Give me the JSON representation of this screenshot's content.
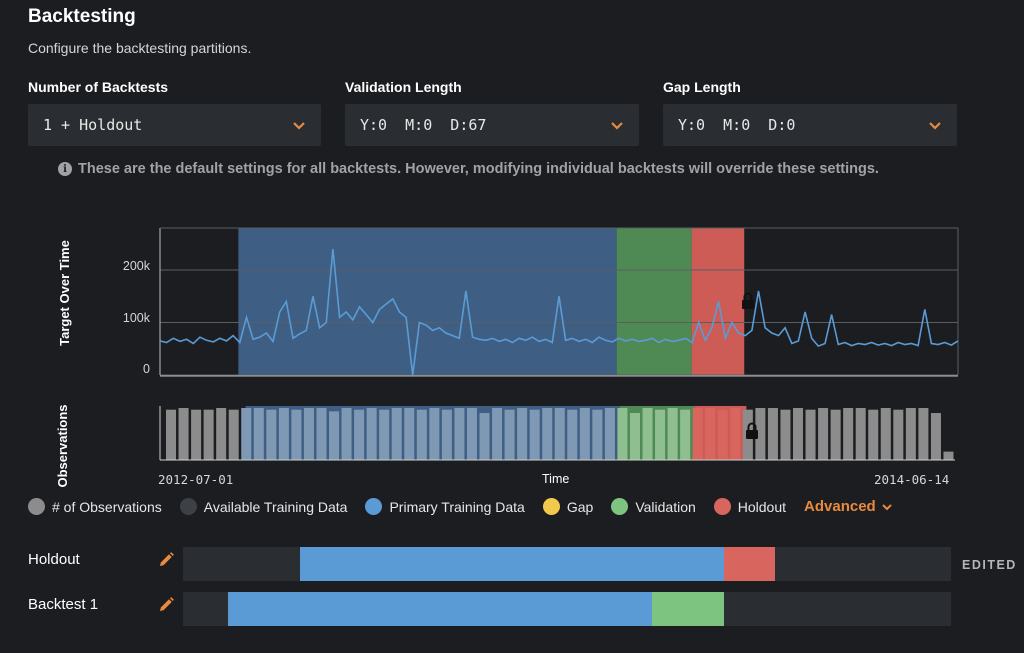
{
  "header": {
    "title": "Backtesting",
    "subtitle": "Configure the backtesting partitions."
  },
  "fields": {
    "backtests": {
      "label": "Number of Backtests",
      "value": "1 + Holdout"
    },
    "validation": {
      "label": "Validation Length",
      "value": "Y:0  M:0  D:67"
    },
    "gap": {
      "label": "Gap Length",
      "value": "Y:0  M:0  D:0"
    }
  },
  "info_text": "These are the default settings for all backtests. However, modifying individual backtests will override these settings.",
  "icons": {
    "info": "info-icon",
    "dropdown": "chevron-down-icon",
    "lock": "lock-icon",
    "edit": "pencil-icon"
  },
  "colors": {
    "primary_training": "#5b9bd5",
    "validation": "#7cc47f",
    "holdout": "#d9655f",
    "gap": "#f2c94c",
    "observations": "#8c8c8c",
    "available_training": "#3d4045",
    "accent": "#e98a3e"
  },
  "chart_data": [
    {
      "type": "line",
      "ylabel": "Target Over Time",
      "ytick_labels": [
        "0",
        "100k",
        "200k"
      ],
      "ylim": [
        0,
        280000
      ],
      "x_range": [
        "2012-07-01",
        "2014-06-14"
      ],
      "grid": true,
      "series": [
        {
          "values": [
            65000,
            62000,
            70000,
            64000,
            68000,
            60000,
            72000,
            66000,
            63000,
            70000,
            65000,
            75000,
            62000,
            110000,
            68000,
            72000,
            80000,
            64000,
            120000,
            140000,
            70000,
            78000,
            85000,
            150000,
            90000,
            100000,
            240000,
            110000,
            120000,
            105000,
            130000,
            115000,
            100000,
            125000,
            135000,
            145000,
            120000,
            110000,
            0,
            100000,
            95000,
            85000,
            90000,
            80000,
            75000,
            70000,
            160000,
            72000,
            68000,
            66000,
            70000,
            64000,
            68000,
            62000,
            70000,
            66000,
            72000,
            64000,
            68000,
            62000,
            150000,
            66000,
            70000,
            64000,
            68000,
            62000,
            72000,
            66000,
            63000,
            70000,
            65000,
            68000,
            64000,
            66000,
            70000,
            62000,
            68000,
            64000,
            66000,
            70000,
            62000,
            100000,
            66000,
            90000,
            140000,
            70000,
            100000,
            80000,
            75000,
            85000,
            160000,
            90000,
            80000,
            75000,
            90000,
            60000,
            65000,
            120000,
            70000,
            55000,
            60000,
            115000,
            58000,
            62000,
            56000,
            60000,
            58000,
            62000,
            57000,
            60000,
            56000,
            62000,
            58000,
            60000,
            56000,
            125000,
            60000,
            58000,
            62000,
            57000,
            65000
          ]
        }
      ],
      "partitions": [
        {
          "name": "Primary Training Data",
          "start": "2012-09-09",
          "end": "2013-08-13"
        },
        {
          "name": "Validation",
          "start": "2013-08-13",
          "end": "2013-10-19"
        },
        {
          "name": "Holdout",
          "start": "2013-10-19",
          "end": "2013-12-05"
        }
      ]
    },
    {
      "type": "bar",
      "ylabel": "Observations",
      "xlabel": "Time",
      "x_tick_labels": [
        "2012-07-01",
        "2014-06-14"
      ],
      "values": [
        30,
        31,
        30,
        30,
        31,
        30,
        31,
        31,
        30,
        31,
        30,
        31,
        31,
        29,
        31,
        30,
        31,
        30,
        31,
        31,
        30,
        31,
        30,
        31,
        31,
        28,
        31,
        30,
        31,
        30,
        31,
        31,
        30,
        31,
        30,
        31,
        31,
        28,
        31,
        30,
        31,
        30,
        31,
        31,
        30,
        31,
        30,
        31,
        31,
        30,
        31,
        30,
        31,
        30,
        31,
        31,
        30,
        31,
        30,
        31,
        31,
        28,
        5
      ]
    }
  ],
  "legend": {
    "items": [
      {
        "key": "observations",
        "label": "# of Observations"
      },
      {
        "key": "available_training",
        "label": "Available Training Data"
      },
      {
        "key": "primary_training",
        "label": "Primary Training Data"
      },
      {
        "key": "gap",
        "label": "Gap"
      },
      {
        "key": "validation",
        "label": "Validation"
      },
      {
        "key": "holdout",
        "label": "Holdout"
      }
    ],
    "advanced_label": "Advanced"
  },
  "backtest_rows": [
    {
      "label": "Holdout",
      "badge": "EDITED",
      "segments": [
        {
          "name": "Primary Training Data",
          "start": 0.152,
          "end": 0.704
        },
        {
          "name": "Holdout",
          "start": 0.704,
          "end": 0.771
        }
      ]
    },
    {
      "label": "Backtest 1",
      "badge": "",
      "segments": [
        {
          "name": "Primary Training Data",
          "start": 0.059,
          "end": 0.611
        },
        {
          "name": "Validation",
          "start": 0.611,
          "end": 0.704
        }
      ]
    }
  ]
}
